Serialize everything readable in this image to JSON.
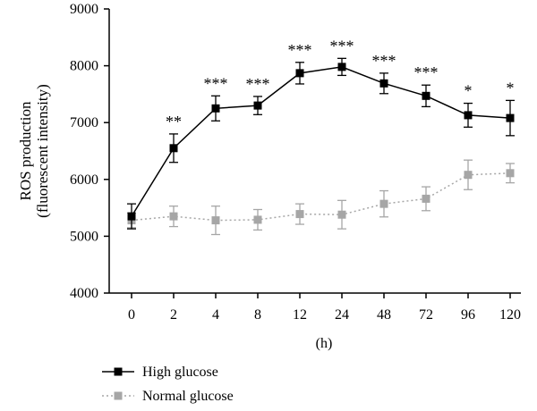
{
  "chart_data": {
    "type": "line",
    "xlabel": "(h)",
    "ylabel_line1": "ROS production",
    "ylabel_line2": "(fluorescent intensity)",
    "categories": [
      "0",
      "2",
      "4",
      "8",
      "12",
      "24",
      "48",
      "72",
      "96",
      "120"
    ],
    "ylim": [
      4000,
      9000
    ],
    "yticks": [
      4000,
      5000,
      6000,
      7000,
      8000,
      9000
    ],
    "grid": false,
    "legend_position": "bottom-left",
    "series": [
      {
        "name": "High glucose",
        "color": "#000000",
        "line_style": "solid",
        "marker": "square",
        "values": [
          5350,
          6550,
          7250,
          7300,
          7870,
          7980,
          7690,
          7470,
          7130,
          7080
        ],
        "errors": [
          220,
          250,
          220,
          160,
          190,
          150,
          180,
          190,
          210,
          310
        ],
        "significance": [
          "",
          "**",
          "***",
          "***",
          "***",
          "***",
          "***",
          "***",
          "*",
          "*"
        ]
      },
      {
        "name": "Normal glucose",
        "color": "#a6a6a6",
        "line_style": "dotted",
        "marker": "square",
        "values": [
          5280,
          5350,
          5280,
          5290,
          5390,
          5380,
          5570,
          5660,
          6080,
          6110
        ],
        "errors": [
          130,
          180,
          250,
          180,
          180,
          250,
          230,
          210,
          260,
          170
        ],
        "significance": [
          "",
          "",
          "",
          "",
          "",
          "",
          "",
          "",
          "",
          ""
        ]
      }
    ]
  }
}
